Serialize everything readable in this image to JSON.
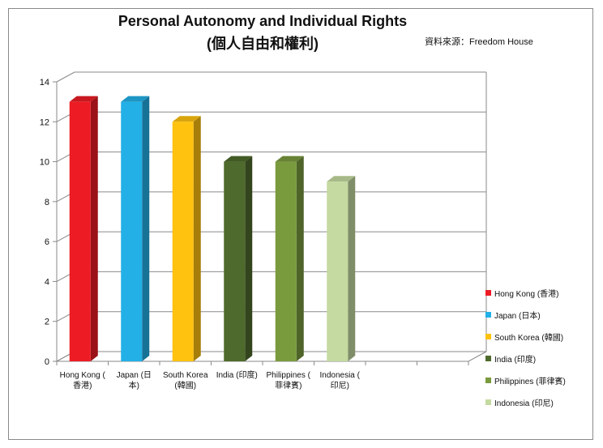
{
  "title_line1": "Personal Autonomy and Individual Rights",
  "title_line2": "(個人自由和權利)",
  "source": "資料來源：Freedom House",
  "chart_data": {
    "type": "bar",
    "title": "Personal Autonomy and Individual Rights (個人自由和權利)",
    "categories": [
      [
        "Hong Kong (",
        "香港)"
      ],
      [
        "Japan (日",
        "本)"
      ],
      [
        "South Korea",
        "(韓國)"
      ],
      [
        "India (印度)"
      ],
      [
        "Philippines (",
        "菲律賓)"
      ],
      [
        "Indonesia (",
        "印尼)"
      ]
    ],
    "series": [
      {
        "name": "Hong Kong (香港)",
        "color": "#ed1c24",
        "value": 13
      },
      {
        "name": "Japan (日本)",
        "color": "#22b0e6",
        "value": 13
      },
      {
        "name": "South Korea (韓國)",
        "color": "#ffc20e",
        "value": 12
      },
      {
        "name": "India (印度)",
        "color": "#4e6a2c",
        "value": 10
      },
      {
        "name": "Philippines (菲律賓)",
        "color": "#7a9a3e",
        "value": 10
      },
      {
        "name": "Indonesia (印尼)",
        "color": "#c4daa0",
        "value": 9
      }
    ],
    "yticks": [
      0,
      2,
      4,
      6,
      8,
      10,
      12,
      14
    ],
    "ylim": [
      0,
      14
    ],
    "grid": true,
    "legend_position": "right"
  }
}
